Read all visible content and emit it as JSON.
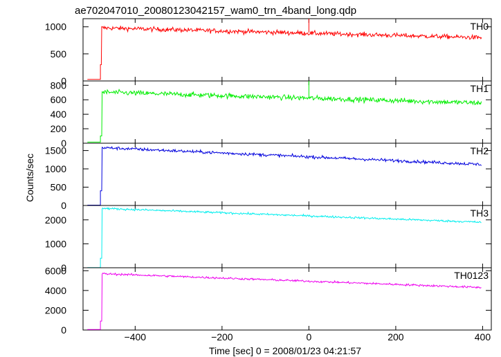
{
  "chart_data": {
    "type": "line",
    "title": "ae702047010_20080123042157_wam0_trn_4band_long.qdp",
    "xlabel": "Time [sec] 0 = 2008/01/23 04:21:57",
    "ylabel": "Counts/sec",
    "xlim": [
      -520,
      420
    ],
    "x_ticks": [
      -400,
      -200,
      0,
      200,
      400
    ],
    "x_tick_labels": [
      "−400",
      "−200",
      "0",
      "200",
      "400"
    ],
    "grid": false,
    "panels": [
      {
        "name": "TH0",
        "color": "#ff0000",
        "ylim": [
          0,
          1150
        ],
        "y_ticks": [
          0,
          500,
          1000
        ],
        "y_tick_labels": [
          "0",
          "500",
          "1000"
        ],
        "pre_level": 30,
        "onset_x": -478,
        "rise_points": [
          [
            -480,
            30
          ],
          [
            -480,
            300
          ],
          [
            -478,
            300
          ]
        ],
        "peak": 980,
        "end": 800,
        "noise": 45,
        "spike": {
          "x": 0,
          "top": 1150
        }
      },
      {
        "name": "TH1",
        "color": "#00ee00",
        "ylim": [
          0,
          860
        ],
        "y_ticks": [
          0,
          200,
          400,
          600,
          800
        ],
        "y_tick_labels": [
          "0",
          "200",
          "400",
          "600",
          "800"
        ],
        "pre_level": 15,
        "onset_x": -477,
        "rise_points": [
          [
            -480,
            15
          ],
          [
            -480,
            100
          ],
          [
            -477,
            100
          ]
        ],
        "peak": 705,
        "end": 555,
        "noise": 38,
        "spike": {
          "x": 0,
          "top": 860
        }
      },
      {
        "name": "TH2",
        "color": "#0000dd",
        "ylim": [
          0,
          1700
        ],
        "y_ticks": [
          0,
          500,
          1000,
          1500
        ],
        "y_tick_labels": [
          "0",
          "500",
          "1000",
          "1500"
        ],
        "pre_level": 10,
        "onset_x": -477,
        "rise_points": [
          [
            -480,
            10
          ],
          [
            -480,
            400
          ],
          [
            -477,
            400
          ]
        ],
        "peak": 1580,
        "end": 1120,
        "noise": 45,
        "spike": null
      },
      {
        "name": "TH3",
        "color": "#00eeee",
        "ylim": [
          0,
          2600
        ],
        "y_ticks": [
          0,
          1000,
          2000
        ],
        "y_tick_labels": [
          "0",
          "1000",
          "2000"
        ],
        "pre_level": 10,
        "onset_x": -477,
        "rise_points": [
          [
            -480,
            10
          ],
          [
            -480,
            400
          ],
          [
            -477,
            400
          ]
        ],
        "peak": 2480,
        "end": 1900,
        "noise": 45,
        "spike": null
      },
      {
        "name": "TH0123",
        "color": "#ee00ee",
        "ylim": [
          0,
          6300
        ],
        "y_ticks": [
          0,
          2000,
          4000,
          6000
        ],
        "y_tick_labels": [
          "0",
          "2000",
          "4000",
          "6000"
        ],
        "pre_level": 50,
        "onset_x": -477,
        "rise_points": [
          [
            -480,
            50
          ],
          [
            -480,
            900
          ],
          [
            -477,
            900
          ]
        ],
        "peak": 5700,
        "end": 4300,
        "noise": 110,
        "spike": {
          "x": 0,
          "top": 5000
        }
      }
    ],
    "series_time_range": [
      -477,
      398
    ],
    "series_sample_step": 1.5,
    "pre_range": [
      -510,
      -480
    ]
  }
}
